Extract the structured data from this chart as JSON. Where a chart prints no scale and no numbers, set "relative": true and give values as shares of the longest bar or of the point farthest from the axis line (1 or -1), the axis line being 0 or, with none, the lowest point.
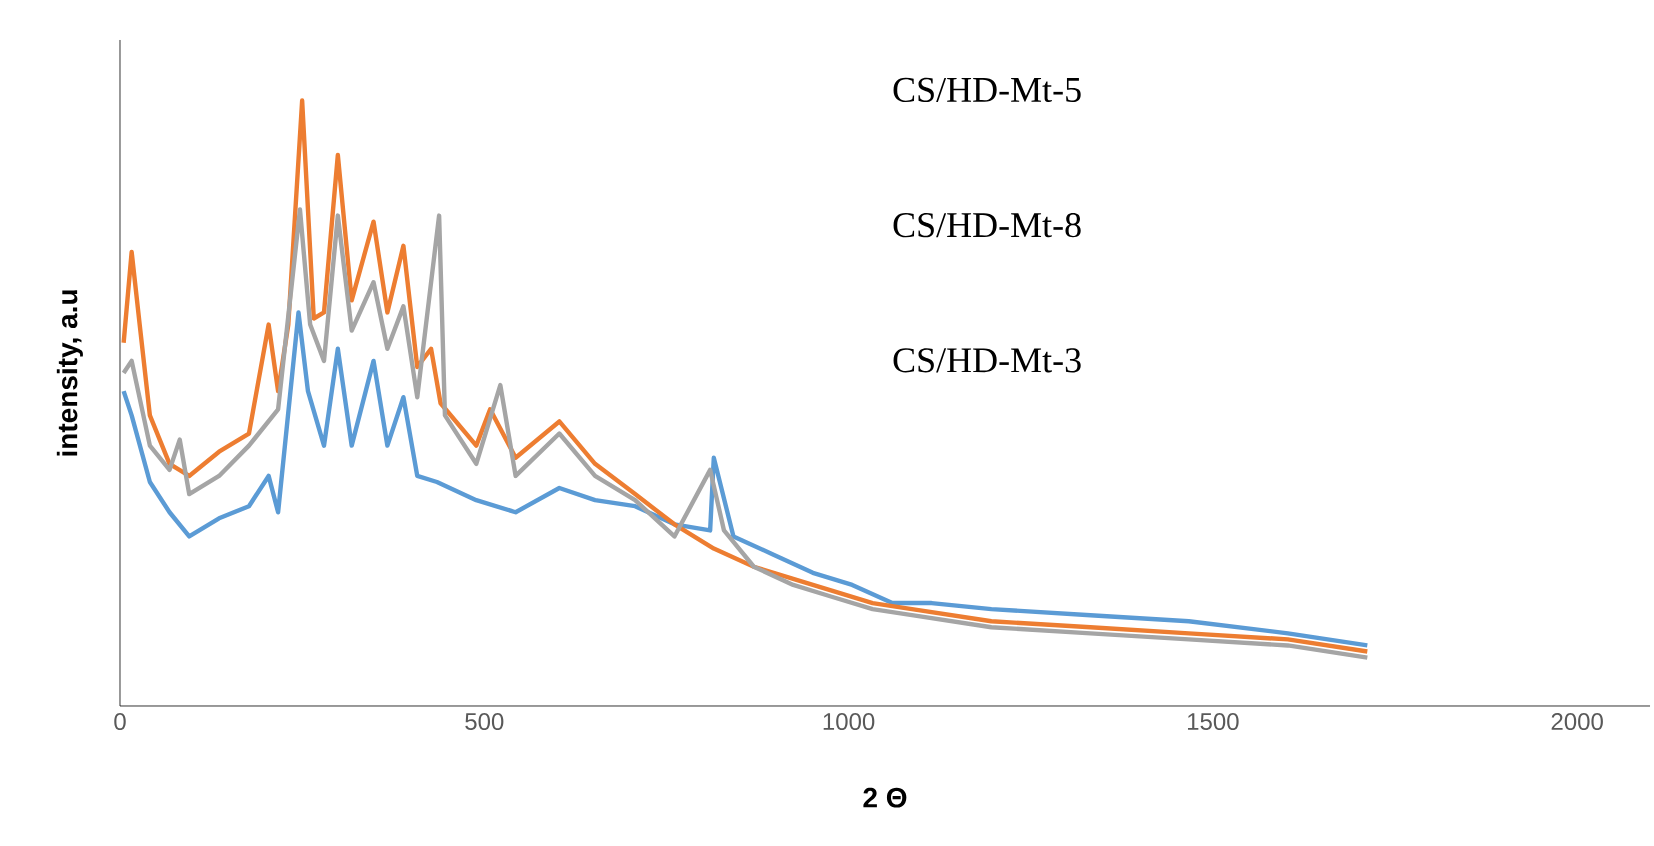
{
  "chart_data": {
    "type": "line",
    "xlabel": "2 Θ",
    "ylabel": "intensity, a.u",
    "relative": true,
    "xlim": [
      0,
      2100
    ],
    "xticks": [
      0,
      500,
      1000,
      1500,
      2000
    ],
    "marker": "none",
    "annotations": [
      "CS/HD-Mt-5",
      "CS/HD-Mt-8",
      "CS/HD-Mt-3"
    ],
    "series": [
      {
        "color": "#5b9bd5",
        "x": [
          5,
          16,
          41,
          68,
          95,
          136,
          177,
          204,
          217,
          245,
          258,
          280,
          299,
          318,
          348,
          367,
          389,
          408,
          435,
          489,
          543,
          603,
          652,
          707,
          761,
          810,
          815,
          842,
          897,
          951,
          1005,
          1060,
          1114,
          1196,
          1332,
          1467,
          1603,
          1712
        ],
        "values": [
          0.52,
          0.48,
          0.37,
          0.32,
          0.28,
          0.31,
          0.33,
          0.38,
          0.32,
          0.65,
          0.52,
          0.43,
          0.59,
          0.43,
          0.57,
          0.43,
          0.51,
          0.38,
          0.37,
          0.34,
          0.32,
          0.36,
          0.34,
          0.33,
          0.3,
          0.29,
          0.41,
          0.28,
          0.25,
          0.22,
          0.2,
          0.17,
          0.17,
          0.16,
          0.15,
          0.14,
          0.12,
          0.1
        ]
      },
      {
        "color": "#ed7d31",
        "x": [
          5,
          16,
          27,
          41,
          68,
          95,
          136,
          177,
          204,
          217,
          231,
          250,
          266,
          280,
          299,
          318,
          348,
          367,
          389,
          408,
          427,
          440,
          489,
          508,
          543,
          603,
          652,
          707,
          761,
          815,
          870,
          924,
          978,
          1033,
          1087,
          1196,
          1332,
          1467,
          1603,
          1712
        ],
        "values": [
          0.6,
          0.75,
          0.63,
          0.48,
          0.4,
          0.38,
          0.42,
          0.45,
          0.63,
          0.52,
          0.63,
          1.0,
          0.64,
          0.65,
          0.91,
          0.67,
          0.8,
          0.65,
          0.76,
          0.56,
          0.59,
          0.5,
          0.43,
          0.49,
          0.41,
          0.47,
          0.4,
          0.35,
          0.3,
          0.26,
          0.23,
          0.21,
          0.19,
          0.17,
          0.16,
          0.14,
          0.13,
          0.12,
          0.11,
          0.09
        ]
      },
      {
        "color": "#a5a5a5",
        "x": [
          5,
          16,
          41,
          68,
          82,
          95,
          136,
          177,
          217,
          247,
          261,
          280,
          299,
          318,
          348,
          367,
          389,
          408,
          438,
          446,
          489,
          522,
          543,
          603,
          652,
          707,
          761,
          810,
          829,
          870,
          924,
          978,
          1033,
          1087,
          1196,
          1332,
          1467,
          1603,
          1712
        ],
        "values": [
          0.55,
          0.57,
          0.43,
          0.39,
          0.44,
          0.35,
          0.38,
          0.43,
          0.49,
          0.82,
          0.63,
          0.57,
          0.81,
          0.62,
          0.7,
          0.59,
          0.66,
          0.51,
          0.81,
          0.48,
          0.4,
          0.53,
          0.38,
          0.45,
          0.38,
          0.34,
          0.28,
          0.39,
          0.29,
          0.23,
          0.2,
          0.18,
          0.16,
          0.15,
          0.13,
          0.12,
          0.11,
          0.1,
          0.08
        ]
      }
    ]
  }
}
